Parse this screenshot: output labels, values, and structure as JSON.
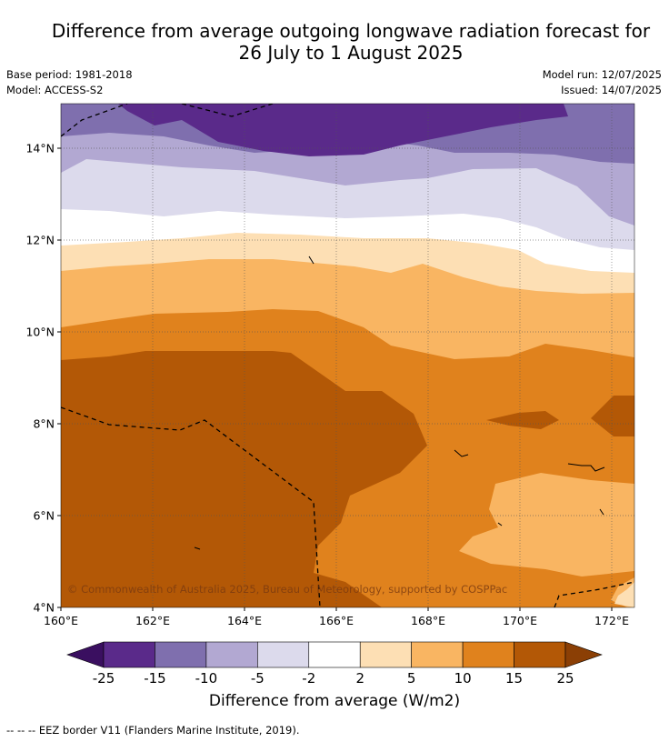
{
  "title_line1": "Difference from average outgoing longwave radiation forecast for",
  "title_line2": "26 July to 1 August 2025",
  "base_period": "Base period: 1981-2018",
  "model": "Model: ACCESS-S2",
  "model_run": "Model run: 12/07/2025",
  "issued": "Issued: 14/07/2025",
  "copyright": "© Commonwealth of Australia 2025, Bureau of Meteorology, supported by COSPPac",
  "lat_labels": [
    "14°N",
    "12°N",
    "10°N",
    "8°N",
    "6°N",
    "4°N"
  ],
  "lon_labels": [
    "160°E",
    "162°E",
    "164°E",
    "166°E",
    "168°E",
    "170°E",
    "172°E"
  ],
  "colorbar": {
    "title": "Difference from average (W/m2)",
    "ticks": [
      "-25",
      "-15",
      "-10",
      "-5",
      "-2",
      "2",
      "5",
      "10",
      "15",
      "25"
    ],
    "colors": [
      "#5a2a8a",
      "#7f6fae",
      "#b2a8d2",
      "#dcdaec",
      "#ffffff",
      "#fddfb4",
      "#f9b562",
      "#e0821d",
      "#b35806"
    ],
    "under_color": "#3a0f60",
    "over_color": "#8b3f05"
  },
  "footnote": "--  --  -- EEZ border V11 (Flanders Marine Institute, 2019)."
}
